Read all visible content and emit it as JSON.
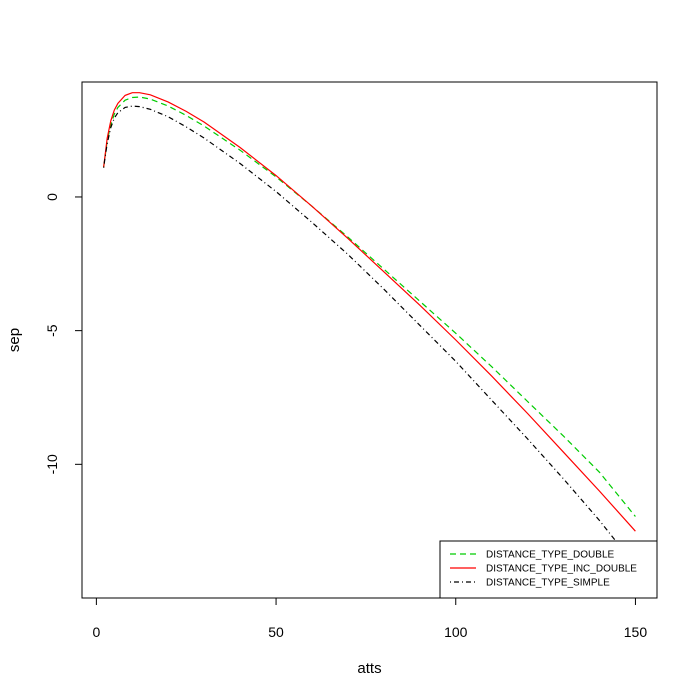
{
  "chart_data": {
    "type": "line",
    "title": "",
    "xlabel": "atts",
    "ylabel": "sep",
    "xlim": [
      -4,
      156
    ],
    "ylim": [
      -15,
      4.3
    ],
    "xticks": [
      0,
      50,
      100,
      150
    ],
    "yticks": [
      0,
      -5,
      -10
    ],
    "x_tick_labels": [
      "0",
      "50",
      "100",
      "150"
    ],
    "y_tick_labels": [
      "0",
      "-5",
      "-10"
    ],
    "grid": false,
    "legend_position": "bottom-right",
    "series": [
      {
        "name": "DISTANCE_TYPE_DOUBLE",
        "color": "#00cc00",
        "dash": "dashed",
        "x": [
          2,
          3,
          4,
          5,
          6,
          8,
          10,
          12,
          15,
          20,
          25,
          30,
          40,
          50,
          60,
          70,
          80,
          90,
          100,
          110,
          120,
          130,
          140,
          150
        ],
        "y": [
          1.1,
          2.1,
          2.7,
          3.1,
          3.35,
          3.62,
          3.72,
          3.74,
          3.66,
          3.4,
          3.05,
          2.65,
          1.75,
          0.75,
          -0.35,
          -1.5,
          -2.7,
          -3.9,
          -5.1,
          -6.35,
          -7.65,
          -8.95,
          -10.3,
          -11.95
        ]
      },
      {
        "name": "DISTANCE_TYPE_INC_DOUBLE",
        "color": "#ff0000",
        "dash": "solid",
        "x": [
          2,
          3,
          4,
          5,
          6,
          8,
          10,
          12,
          15,
          20,
          25,
          30,
          40,
          50,
          60,
          70,
          80,
          90,
          100,
          110,
          120,
          130,
          140,
          150
        ],
        "y": [
          1.1,
          2.2,
          2.85,
          3.25,
          3.5,
          3.8,
          3.9,
          3.9,
          3.82,
          3.55,
          3.2,
          2.8,
          1.85,
          0.8,
          -0.35,
          -1.55,
          -2.8,
          -4.05,
          -5.35,
          -6.7,
          -8.1,
          -9.55,
          -11.0,
          -12.5
        ]
      },
      {
        "name": "DISTANCE_TYPE_SIMPLE",
        "color": "#000000",
        "dash": "dotdash",
        "x": [
          2,
          3,
          4,
          5,
          6,
          8,
          10,
          12,
          15,
          20,
          25,
          30,
          40,
          50,
          60,
          70,
          80,
          90,
          100,
          110,
          120,
          130,
          140,
          145
        ],
        "y": [
          1.1,
          2.0,
          2.6,
          2.95,
          3.15,
          3.35,
          3.4,
          3.38,
          3.28,
          3.0,
          2.62,
          2.2,
          1.25,
          0.2,
          -0.95,
          -2.15,
          -3.45,
          -4.8,
          -6.15,
          -7.6,
          -9.05,
          -10.55,
          -12.1,
          -12.95
        ]
      }
    ]
  }
}
